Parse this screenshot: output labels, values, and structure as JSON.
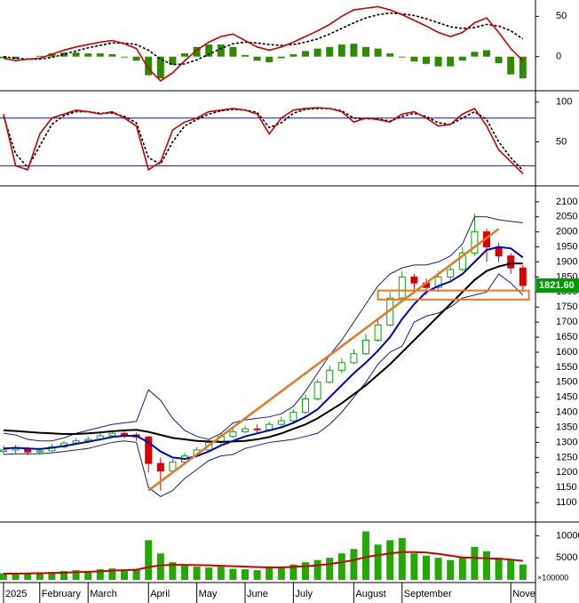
{
  "chart_data": [
    {
      "type": "line",
      "ylim": [
        -40,
        68
      ],
      "yticks": [
        0,
        50
      ],
      "series": [
        {
          "style": "histogram",
          "color": "#2e8b00",
          "values": [
            -2,
            -3,
            0,
            1,
            4,
            5,
            5,
            4,
            4,
            3,
            -1,
            -5,
            -23,
            -27,
            -10,
            4,
            12,
            15,
            15,
            12,
            2,
            -5,
            -7,
            -2,
            3,
            7,
            10,
            12,
            15,
            16,
            12,
            10,
            4,
            -1,
            -6,
            -9,
            -12,
            -12,
            -5,
            6,
            8,
            -8,
            -22,
            -27
          ]
        },
        {
          "style": "dashed",
          "color": "#000000",
          "values": [
            0,
            -2,
            -3,
            -3,
            -1,
            3,
            7,
            11,
            14,
            17,
            17,
            15,
            8,
            -3,
            -10,
            -9,
            -4,
            3,
            10,
            16,
            18,
            17,
            15,
            14,
            15,
            18,
            22,
            28,
            35,
            42,
            48,
            52,
            54,
            53,
            51,
            47,
            42,
            37,
            35,
            36,
            40,
            38,
            32,
            22
          ]
        },
        {
          "style": "solid",
          "color": "#cc0000",
          "values": [
            -2,
            -5,
            -3,
            -2,
            3,
            8,
            12,
            15,
            18,
            20,
            16,
            10,
            -15,
            -30,
            -20,
            -5,
            8,
            18,
            25,
            28,
            20,
            12,
            8,
            12,
            18,
            25,
            32,
            40,
            50,
            58,
            60,
            62,
            58,
            52,
            45,
            38,
            30,
            25,
            30,
            42,
            48,
            30,
            10,
            -5
          ]
        }
      ]
    },
    {
      "type": "line",
      "ylim": [
        -2,
        111
      ],
      "yticks": [
        50,
        100
      ],
      "hlines": [
        80,
        20
      ],
      "series": [
        {
          "style": "dashed",
          "color": "#000000",
          "values": [
            82,
            35,
            18,
            45,
            72,
            83,
            88,
            88,
            86,
            86,
            82,
            74,
            30,
            22,
            50,
            70,
            78,
            85,
            89,
            91,
            90,
            87,
            68,
            74,
            86,
            91,
            92,
            92,
            89,
            80,
            79,
            79,
            76,
            82,
            86,
            82,
            74,
            72,
            80,
            88,
            78,
            50,
            30,
            14
          ]
        },
        {
          "style": "solid",
          "color": "#cc0000",
          "values": [
            85,
            20,
            15,
            60,
            80,
            85,
            90,
            88,
            85,
            88,
            80,
            70,
            15,
            25,
            65,
            75,
            80,
            88,
            90,
            92,
            90,
            85,
            60,
            80,
            90,
            92,
            93,
            92,
            88,
            75,
            80,
            78,
            75,
            85,
            88,
            80,
            70,
            72,
            85,
            92,
            70,
            40,
            25,
            10
          ]
        }
      ]
    },
    {
      "type": "candlestick",
      "ylim": [
        1047,
        2144
      ],
      "yticks": [
        1100,
        1150,
        1200,
        1250,
        1300,
        1350,
        1400,
        1450,
        1500,
        1550,
        1600,
        1650,
        1700,
        1750,
        1800,
        1850,
        1900,
        1950,
        2000,
        2050,
        2100
      ],
      "up_color": "#00aa00",
      "down_color": "#dd0000",
      "open": [
        1270,
        1275,
        1280,
        1268,
        1272,
        1285,
        1298,
        1305,
        1310,
        1322,
        1330,
        1325,
        1318,
        1230,
        1205,
        1235,
        1255,
        1275,
        1300,
        1320,
        1335,
        1345,
        1342,
        1360,
        1372,
        1400,
        1445,
        1500,
        1540,
        1565,
        1595,
        1640,
        1690,
        1780,
        1850,
        1830,
        1815,
        1850,
        1875,
        1930,
        2000,
        1950,
        1920,
        1880
      ],
      "high": [
        1290,
        1292,
        1285,
        1282,
        1295,
        1305,
        1315,
        1320,
        1332,
        1340,
        1338,
        1332,
        1322,
        1250,
        1245,
        1265,
        1285,
        1310,
        1330,
        1345,
        1355,
        1360,
        1370,
        1385,
        1410,
        1460,
        1510,
        1555,
        1580,
        1610,
        1660,
        1710,
        1800,
        1870,
        1860,
        1845,
        1870,
        1890,
        1950,
        2060,
        2010,
        1965,
        1930,
        1890
      ],
      "low": [
        1260,
        1262,
        1258,
        1260,
        1268,
        1280,
        1292,
        1298,
        1305,
        1318,
        1315,
        1305,
        1200,
        1140,
        1200,
        1225,
        1250,
        1270,
        1295,
        1315,
        1330,
        1330,
        1338,
        1352,
        1365,
        1395,
        1440,
        1495,
        1530,
        1560,
        1590,
        1635,
        1685,
        1770,
        1800,
        1790,
        1800,
        1840,
        1870,
        1920,
        1900,
        1900,
        1860,
        1800
      ],
      "close": [
        1275,
        1280,
        1268,
        1272,
        1285,
        1298,
        1305,
        1310,
        1322,
        1330,
        1325,
        1318,
        1230,
        1205,
        1235,
        1255,
        1275,
        1300,
        1320,
        1335,
        1345,
        1342,
        1360,
        1372,
        1400,
        1445,
        1500,
        1540,
        1565,
        1595,
        1640,
        1690,
        1780,
        1850,
        1830,
        1815,
        1850,
        1875,
        1930,
        2000,
        1950,
        1920,
        1880,
        1821.6
      ],
      "series": [
        {
          "color": "#1a1a80",
          "width": 1,
          "values": [
            1330,
            1325,
            1310,
            1305,
            1305,
            1315,
            1330,
            1340,
            1350,
            1360,
            1365,
            1370,
            1475,
            1440,
            1380,
            1340,
            1320,
            1310,
            1330,
            1365,
            1375,
            1380,
            1385,
            1395,
            1420,
            1470,
            1530,
            1590,
            1640,
            1700,
            1760,
            1820,
            1860,
            1880,
            1890,
            1890,
            1900,
            1920,
            1960,
            2050,
            2050,
            2040,
            2035,
            2030
          ]
        },
        {
          "color": "#1a1a80",
          "width": 1,
          "values": [
            1260,
            1262,
            1262,
            1262,
            1265,
            1270,
            1275,
            1280,
            1290,
            1300,
            1305,
            1300,
            1150,
            1120,
            1140,
            1180,
            1210,
            1240,
            1255,
            1260,
            1280,
            1290,
            1300,
            1305,
            1310,
            1320,
            1330,
            1360,
            1400,
            1450,
            1500,
            1560,
            1600,
            1620,
            1700,
            1720,
            1730,
            1750,
            1780,
            1790,
            1800,
            1860,
            1830,
            1790
          ]
        },
        {
          "color": "#000000",
          "width": 2,
          "values": [
            1340,
            1338,
            1335,
            1332,
            1330,
            1328,
            1328,
            1330,
            1333,
            1337,
            1340,
            1342,
            1335,
            1325,
            1315,
            1310,
            1305,
            1303,
            1302,
            1303,
            1305,
            1310,
            1318,
            1330,
            1345,
            1360,
            1380,
            1405,
            1430,
            1460,
            1490,
            1525,
            1560,
            1600,
            1640,
            1680,
            1720,
            1760,
            1800,
            1840,
            1870,
            1885,
            1895,
            1895
          ]
        },
        {
          "color": "#0000cc",
          "width": 2,
          "values": [
            1280,
            1282,
            1280,
            1278,
            1282,
            1288,
            1295,
            1302,
            1310,
            1318,
            1322,
            1322,
            1300,
            1270,
            1250,
            1245,
            1255,
            1270,
            1290,
            1305,
            1320,
            1330,
            1340,
            1350,
            1365,
            1385,
            1410,
            1450,
            1490,
            1530,
            1565,
            1605,
            1650,
            1710,
            1760,
            1800,
            1820,
            1835,
            1860,
            1900,
            1940,
            1950,
            1945,
            1915
          ]
        }
      ],
      "trendline": {
        "color": "#e87722",
        "x": [
          12,
          41
        ],
        "y": [
          1140,
          2010
        ]
      },
      "zone": {
        "color": "#e87722",
        "x": [
          31,
          43.5
        ],
        "y": [
          1775,
          1805
        ]
      },
      "last_price": {
        "value": 1821.6,
        "label": "1821.60"
      }
    },
    {
      "type": "bar",
      "ylim": [
        0,
        12500
      ],
      "yticks": [
        5000,
        10000
      ],
      "color": "#22aa00",
      "unit_label": "×100000",
      "values": [
        1500,
        1200,
        1300,
        1600,
        1800,
        2000,
        2200,
        1900,
        2400,
        2600,
        2200,
        2500,
        9000,
        6000,
        4000,
        3500,
        3000,
        2800,
        3000,
        2500,
        2400,
        2200,
        2800,
        3000,
        3500,
        4000,
        4500,
        5000,
        6000,
        7000,
        11000,
        8000,
        9000,
        9500,
        6000,
        5500,
        5000,
        4500,
        5000,
        7500,
        6500,
        5000,
        4500,
        3500
      ],
      "series": [
        {
          "color": "#cc0000",
          "width": 2,
          "values": [
            1400,
            1400,
            1450,
            1500,
            1550,
            1650,
            1750,
            1850,
            1950,
            2100,
            2200,
            2300,
            2900,
            3300,
            3400,
            3400,
            3350,
            3300,
            3200,
            3100,
            3000,
            2900,
            2850,
            2850,
            2950,
            3100,
            3300,
            3600,
            4000,
            4500,
            5200,
            5600,
            6000,
            6300,
            6300,
            6200,
            5900,
            5500,
            5100,
            5000,
            4900,
            4800,
            4600,
            4300
          ]
        }
      ],
      "categories": [
        "2025",
        null,
        null,
        "February",
        null,
        null,
        null,
        "March",
        null,
        null,
        null,
        null,
        "April",
        null,
        null,
        null,
        "May",
        null,
        null,
        null,
        "June",
        null,
        null,
        null,
        "July",
        null,
        null,
        null,
        null,
        "August",
        null,
        null,
        null,
        "September",
        null,
        null,
        null,
        null,
        null,
        null,
        null,
        null,
        "Nove",
        null
      ]
    }
  ]
}
